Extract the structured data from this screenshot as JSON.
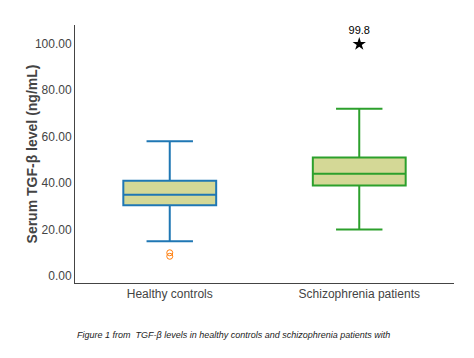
{
  "chart_data": {
    "type": "box",
    "categories": [
      "Healthy controls",
      "Schizophrenia patients"
    ],
    "color": "#d4d896",
    "boxes": [
      {
        "q1": 30.5,
        "median": 35.0,
        "q3": 41.0,
        "whislo": 15.0,
        "whishi": 58.0,
        "fliers": [
          8.5,
          10.0
        ]
      },
      {
        "q1": 39.0,
        "median": 44.0,
        "q3": 51.0,
        "whislo": 20.0,
        "whishi": 72.0,
        "fliers": []
      }
    ],
    "outlier": {
      "category": "Schizophrenia patients",
      "value": 99.8,
      "label": "99.8",
      "marker": "star"
    },
    "ylabel": "Serum TGF-β level (ng/mL)",
    "ylim": [
      -3,
      108
    ],
    "yticks": [
      {
        "value": 0,
        "label": "0.00"
      },
      {
        "value": 20,
        "label": "20.00"
      },
      {
        "value": 40,
        "label": "40.00"
      },
      {
        "value": 60,
        "label": "60.00"
      },
      {
        "value": 80,
        "label": "80.00"
      },
      {
        "value": 100,
        "label": "100.00"
      }
    ],
    "grid": false,
    "caption": "Figure 1 from  TGF-β levels in healthy controls and schizophrenia patients with"
  }
}
